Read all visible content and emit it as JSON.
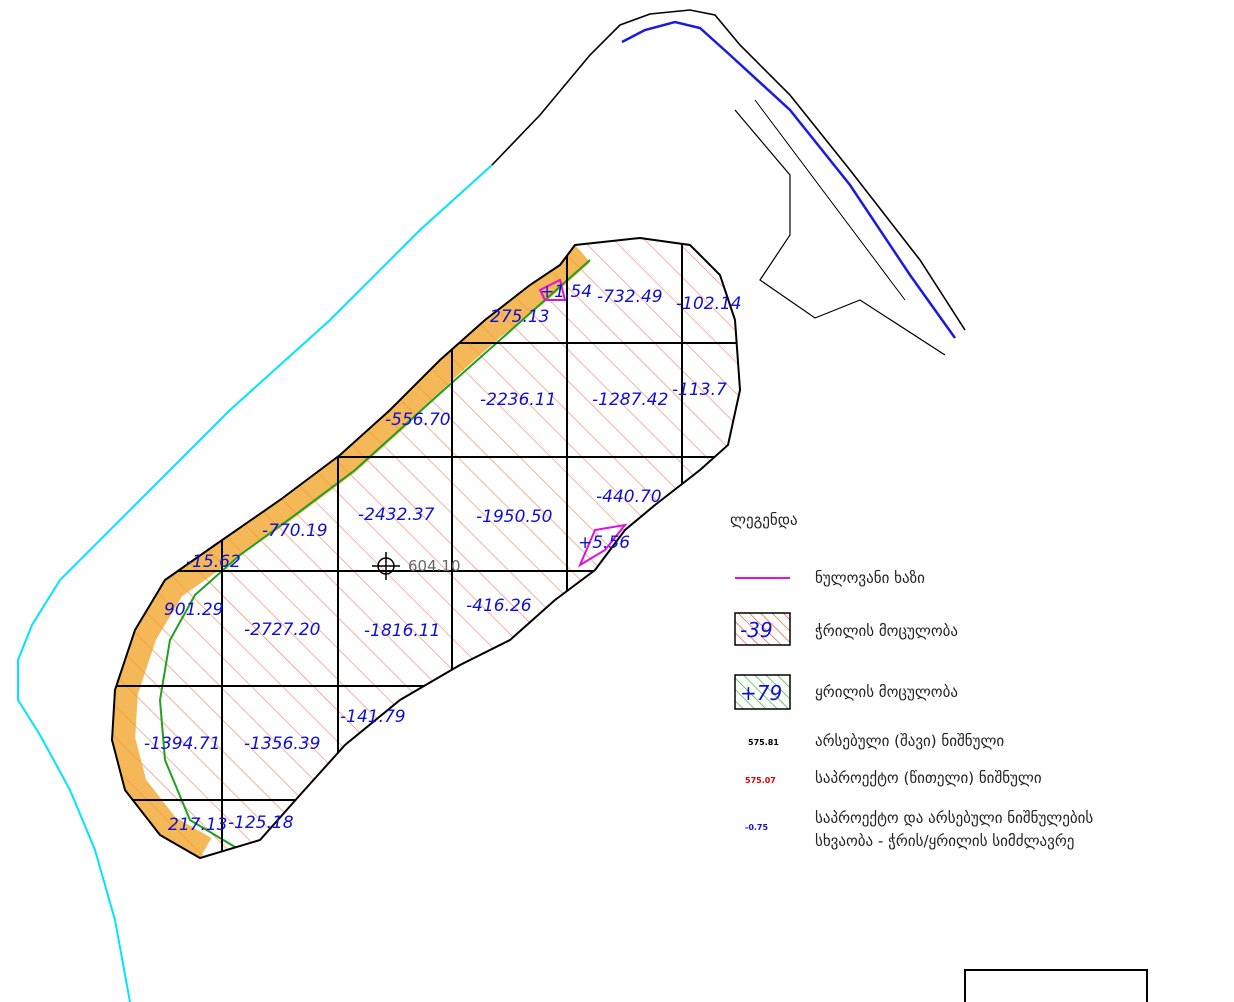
{
  "cells": [
    "275.13",
    "-732.49",
    "-102.14",
    "-556.70",
    "-2236.11",
    "-1287.42",
    "-113.7",
    "-770.19",
    "-2432.37",
    "-1950.50",
    "-440.70",
    "-15.62",
    "901.29",
    "-2727.20",
    "-1816.11",
    "-416.26",
    "-1394.71",
    "-1356.39",
    "-141.79",
    "217.13",
    "-125.18",
    "+1.54",
    "+5.56"
  ],
  "benchmark": "604.10",
  "legend": {
    "title": "ლეგენდა",
    "zero_line": "ნულოვანი ხაზი",
    "cut_sample": "-39",
    "cut": "ჭრილის მოცულობა",
    "fill_sample": "+79",
    "fill": "ყრილის მოცულობა",
    "existing_sample": "575.81",
    "existing": "არსებული (შავი) ნიშნული",
    "design_sample": "575.07",
    "design": "საპროექტო (წითელი) ნიშნული",
    "diff_sample": "-0.75",
    "diff_line1": "საპროექტო და არსებული ნიშნულების",
    "diff_line2": "სხვაობა - ჭრის/ყრილის სიმძლავრე"
  }
}
